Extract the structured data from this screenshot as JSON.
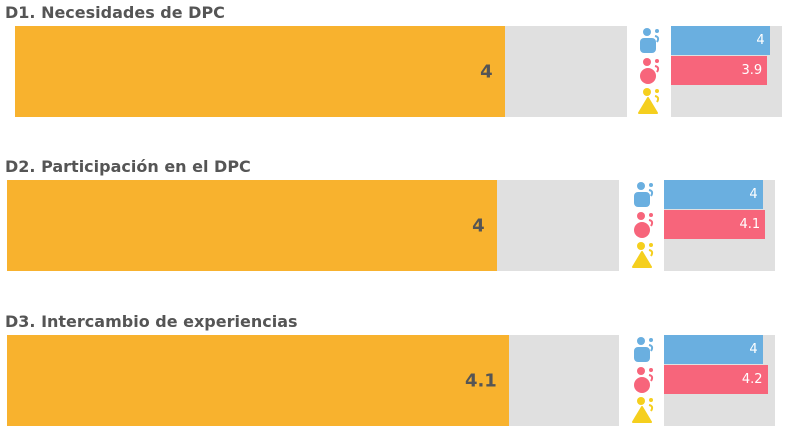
{
  "chart_data": {
    "type": "bar",
    "categories": [
      "D1. Necesidades de DPC",
      "D2. Participación en el DPC",
      "D3. Intercambio de experiencias"
    ],
    "overall": [
      4,
      4,
      4.1
    ],
    "series": [
      {
        "name": "blue-group",
        "values": [
          4,
          4,
          4
        ],
        "color": "#6aafe0"
      },
      {
        "name": "red-group",
        "values": [
          3.9,
          4.1,
          4.2
        ],
        "color": "#f7657b"
      },
      {
        "name": "yellow-group",
        "values": [
          null,
          null,
          null
        ],
        "color": "#f5cf1e"
      }
    ],
    "overall_color": "#f8b22e",
    "xlim": [
      0,
      5
    ],
    "labels": {
      "overall": [
        "4",
        "4",
        "4.1"
      ],
      "blue": [
        "4",
        "4",
        "4"
      ],
      "red": [
        "3.9",
        "4.1",
        "4.2"
      ]
    }
  }
}
